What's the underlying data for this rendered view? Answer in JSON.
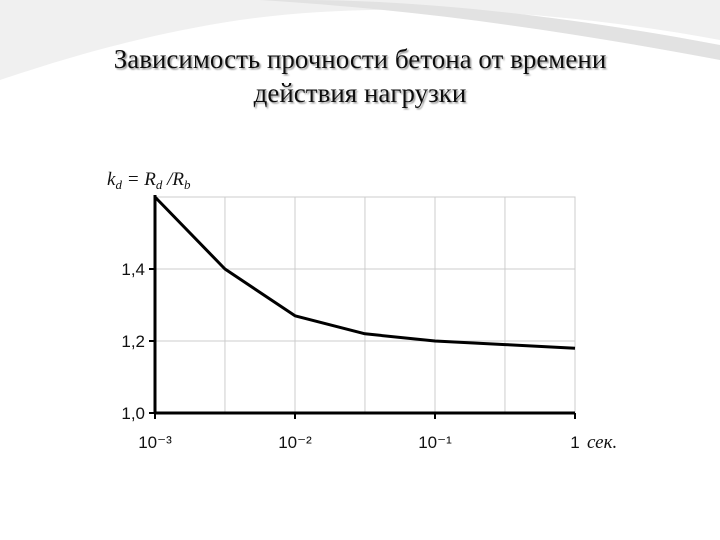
{
  "chart_data": {
    "type": "line",
    "title": [
      "Зависимость прочности бетона от времени",
      "действия нагрузки"
    ],
    "y_label": [
      {
        "text": "k"
      },
      {
        "text": "d",
        "sub": true
      },
      {
        "text": " = R"
      },
      {
        "text": "d",
        "sub": true
      },
      {
        "text": " /R"
      },
      {
        "text": "b",
        "sub": true
      }
    ],
    "x_unit": "сек.",
    "x": [
      0.001,
      0.00316,
      0.01,
      0.0316,
      0.1,
      0.316,
      1
    ],
    "series": [
      {
        "color": "#000000",
        "values": [
          1.6,
          1.4,
          1.27,
          1.22,
          1.2,
          1.19,
          1.18
        ]
      }
    ],
    "xlog": true,
    "xlim": [
      0.001,
      1
    ],
    "ylim": [
      1.0,
      1.6
    ],
    "xticks": [
      {
        "value": 0.001,
        "label": "10⁻³"
      },
      {
        "value": 0.01,
        "label": "10⁻²"
      },
      {
        "value": 0.1,
        "label": "10⁻¹"
      },
      1
    ],
    "xminor": [
      0.00316,
      0.0316,
      0.316
    ],
    "yticks": [
      {
        "value": 1.0,
        "label": "1,0"
      },
      {
        "value": 1.2,
        "label": "1,2"
      },
      {
        "value": 1.4,
        "label": "1,4"
      }
    ],
    "grid": true
  }
}
